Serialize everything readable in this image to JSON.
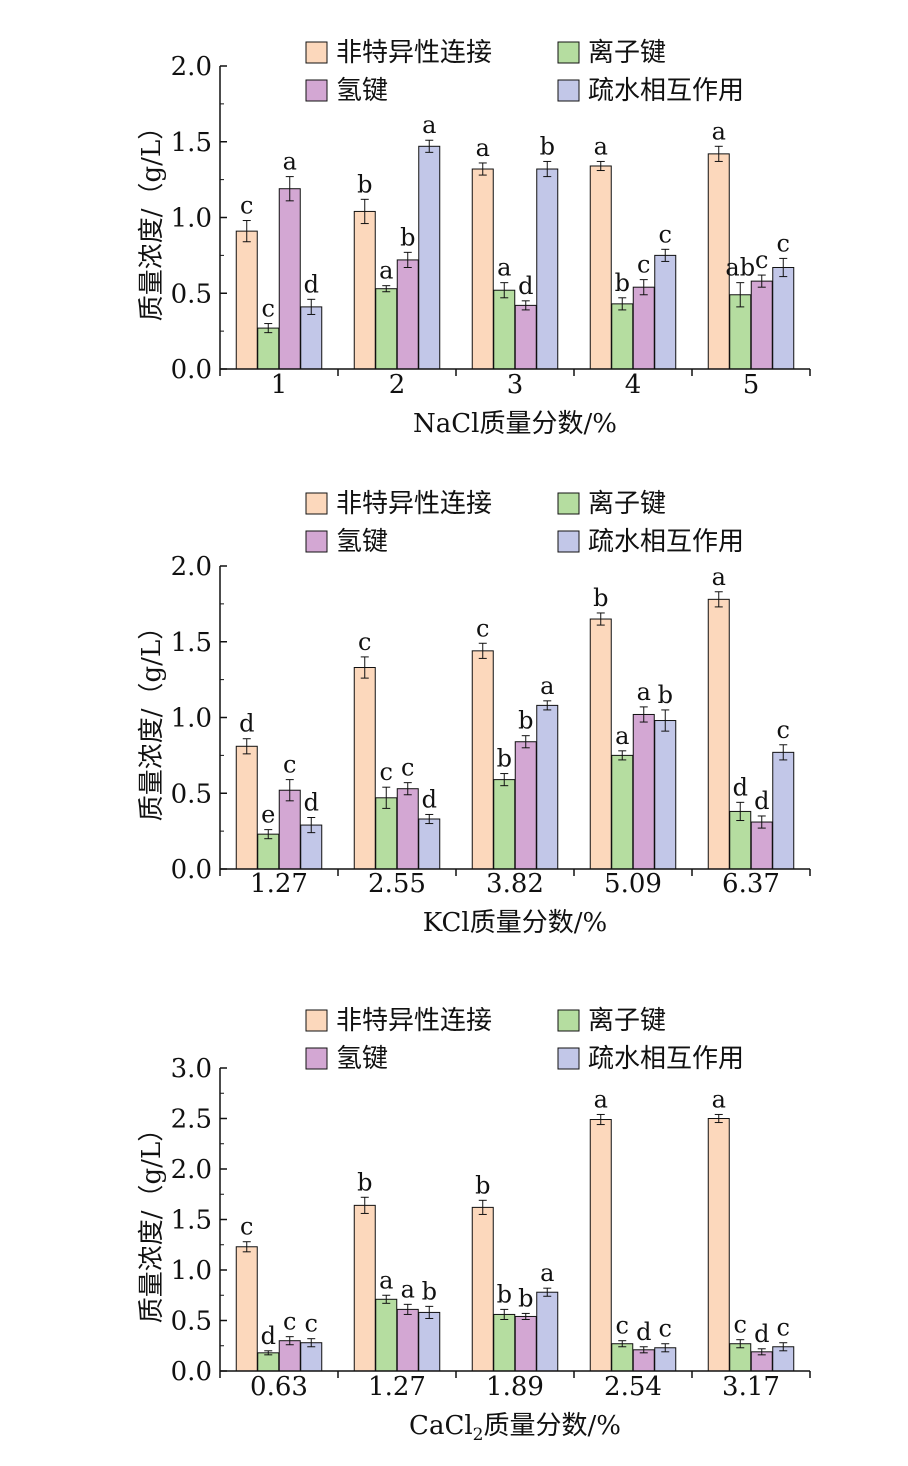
{
  "legend": [
    "非特异性连接",
    "离子键",
    "氢键",
    "疏水相互作用"
  ],
  "colors": {
    "non_specific": "#FCD8BC",
    "ionic": "#B5DDA0",
    "hydrogen": "#D3A7D3",
    "hydrophobic": "#C2C7E8",
    "stroke": "#111111"
  },
  "ylabel": "质量浓度/（g/L）",
  "chart_data": [
    {
      "type": "bar",
      "title": "",
      "xlabel": "NaCl质量分数/%",
      "xlabel_parts": {
        "pre": "NaCl",
        "sub": "",
        "post": "质量分数/%"
      },
      "ylabel": "质量浓度/（g/L）",
      "ylim": [
        0,
        2.0
      ],
      "yticks": [
        "0.0",
        "0.5",
        "1.0",
        "1.5",
        "2.0"
      ],
      "grid": false,
      "legend_position": "top",
      "categories": [
        "1",
        "2",
        "3",
        "4",
        "5"
      ],
      "series": [
        {
          "name": "非特异性连接",
          "values": [
            0.91,
            1.04,
            1.32,
            1.34,
            1.42
          ],
          "errors": [
            0.07,
            0.08,
            0.04,
            0.03,
            0.05
          ],
          "labels": [
            "c",
            "b",
            "a",
            "a",
            "a"
          ]
        },
        {
          "name": "离子键",
          "values": [
            0.27,
            0.53,
            0.52,
            0.43,
            0.49
          ],
          "errors": [
            0.03,
            0.02,
            0.05,
            0.04,
            0.08
          ],
          "labels": [
            "c",
            "a",
            "a",
            "b",
            "ab"
          ]
        },
        {
          "name": "氢键",
          "values": [
            1.19,
            0.72,
            0.42,
            0.54,
            0.58
          ],
          "errors": [
            0.08,
            0.05,
            0.03,
            0.05,
            0.04
          ],
          "labels": [
            "a",
            "b",
            "d",
            "c",
            "c"
          ]
        },
        {
          "name": "疏水相互作用",
          "values": [
            0.41,
            1.47,
            1.32,
            0.75,
            0.67
          ],
          "errors": [
            0.05,
            0.04,
            0.05,
            0.04,
            0.06
          ],
          "labels": [
            "d",
            "a",
            "b",
            "c",
            "c"
          ]
        }
      ]
    },
    {
      "type": "bar",
      "title": "",
      "xlabel": "KCl质量分数/%",
      "xlabel_parts": {
        "pre": "KCl",
        "sub": "",
        "post": "质量分数/%"
      },
      "ylabel": "质量浓度/（g/L）",
      "ylim": [
        0,
        2.0
      ],
      "yticks": [
        "0.0",
        "0.5",
        "1.0",
        "1.5",
        "2.0"
      ],
      "grid": false,
      "legend_position": "top",
      "categories": [
        "1.27",
        "2.55",
        "3.82",
        "5.09",
        "6.37"
      ],
      "series": [
        {
          "name": "非特异性连接",
          "values": [
            0.81,
            1.33,
            1.44,
            1.65,
            1.78
          ],
          "errors": [
            0.05,
            0.07,
            0.05,
            0.04,
            0.05
          ],
          "labels": [
            "d",
            "c",
            "c",
            "b",
            "a"
          ]
        },
        {
          "name": "离子键",
          "values": [
            0.23,
            0.47,
            0.59,
            0.75,
            0.38
          ],
          "errors": [
            0.03,
            0.07,
            0.04,
            0.03,
            0.06
          ],
          "labels": [
            "e",
            "c",
            "b",
            "a",
            "d"
          ]
        },
        {
          "name": "氢键",
          "values": [
            0.52,
            0.53,
            0.84,
            1.02,
            0.31
          ],
          "errors": [
            0.07,
            0.04,
            0.04,
            0.05,
            0.04
          ],
          "labels": [
            "c",
            "c",
            "b",
            "a",
            "d"
          ]
        },
        {
          "name": "疏水相互作用",
          "values": [
            0.29,
            0.33,
            1.08,
            0.98,
            0.77
          ],
          "errors": [
            0.05,
            0.03,
            0.03,
            0.07,
            0.05
          ],
          "labels": [
            "d",
            "d",
            "a",
            "b",
            "c"
          ]
        }
      ]
    },
    {
      "type": "bar",
      "title": "",
      "xlabel": "CaCl2质量分数/%",
      "xlabel_parts": {
        "pre": "CaCl",
        "sub": "2",
        "post": "质量分数/%"
      },
      "ylabel": "质量浓度/（g/L）",
      "ylim": [
        0,
        3.0
      ],
      "yticks": [
        "0.0",
        "0.5",
        "1.0",
        "1.5",
        "2.0",
        "2.5",
        "3.0"
      ],
      "grid": false,
      "legend_position": "top",
      "categories": [
        "0.63",
        "1.27",
        "1.89",
        "2.54",
        "3.17"
      ],
      "series": [
        {
          "name": "非特异性连接",
          "values": [
            1.23,
            1.64,
            1.62,
            2.49,
            2.5
          ],
          "errors": [
            0.05,
            0.08,
            0.07,
            0.05,
            0.04
          ],
          "labels": [
            "c",
            "b",
            "b",
            "a",
            "a"
          ]
        },
        {
          "name": "离子键",
          "values": [
            0.18,
            0.71,
            0.56,
            0.27,
            0.27
          ],
          "errors": [
            0.02,
            0.04,
            0.05,
            0.03,
            0.04
          ],
          "labels": [
            "d",
            "a",
            "b",
            "c",
            "c"
          ]
        },
        {
          "name": "氢键",
          "values": [
            0.3,
            0.61,
            0.54,
            0.21,
            0.19
          ],
          "errors": [
            0.04,
            0.05,
            0.03,
            0.03,
            0.03
          ],
          "labels": [
            "c",
            "a",
            "b",
            "d",
            "d"
          ]
        },
        {
          "name": "疏水相互作用",
          "values": [
            0.28,
            0.58,
            0.78,
            0.23,
            0.24
          ],
          "errors": [
            0.04,
            0.06,
            0.04,
            0.04,
            0.04
          ],
          "labels": [
            "c",
            "b",
            "a",
            "c",
            "c"
          ]
        }
      ]
    }
  ]
}
